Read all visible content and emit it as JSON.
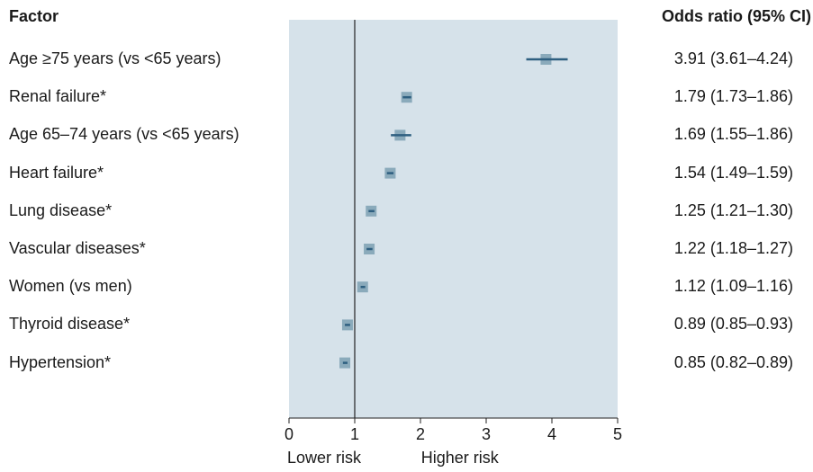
{
  "headers": {
    "factor": "Factor",
    "odds_ratio": "Odds ratio (95% CI)"
  },
  "chart_data": {
    "type": "forest",
    "xlim": [
      0,
      5
    ],
    "x_ticks": [
      "0",
      "1",
      "2",
      "3",
      "4",
      "5"
    ],
    "reference_line": 1,
    "direction_labels": {
      "lower": "Lower risk",
      "higher": "Higher risk"
    },
    "colors": {
      "panel": "#d6e2ea",
      "marker": "#8aaabb",
      "ci_line": "#2e5f80",
      "ref_line": "#222222"
    },
    "rows": [
      {
        "factor": "Age ≥75 years (vs <65 years)",
        "or": 3.91,
        "lo": 3.61,
        "hi": 4.24,
        "label": "3.91 (3.61–4.24)"
      },
      {
        "factor": "Renal failure*",
        "or": 1.79,
        "lo": 1.73,
        "hi": 1.86,
        "label": "1.79 (1.73–1.86)"
      },
      {
        "factor": "Age 65–74 years (vs <65 years)",
        "or": 1.69,
        "lo": 1.55,
        "hi": 1.86,
        "label": "1.69 (1.55–1.86)"
      },
      {
        "factor": "Heart failure*",
        "or": 1.54,
        "lo": 1.49,
        "hi": 1.59,
        "label": "1.54 (1.49–1.59)"
      },
      {
        "factor": "Lung disease*",
        "or": 1.25,
        "lo": 1.21,
        "hi": 1.3,
        "label": "1.25 (1.21–1.30)"
      },
      {
        "factor": "Vascular diseases*",
        "or": 1.22,
        "lo": 1.18,
        "hi": 1.27,
        "label": "1.22 (1.18–1.27)"
      },
      {
        "factor": "Women (vs men)",
        "or": 1.12,
        "lo": 1.09,
        "hi": 1.16,
        "label": "1.12 (1.09–1.16)"
      },
      {
        "factor": "Thyroid disease*",
        "or": 0.89,
        "lo": 0.85,
        "hi": 0.93,
        "label": "0.89 (0.85–0.93)"
      },
      {
        "factor": "Hypertension*",
        "or": 0.85,
        "lo": 0.82,
        "hi": 0.89,
        "label": "0.85 (0.82–0.89)"
      }
    ]
  }
}
